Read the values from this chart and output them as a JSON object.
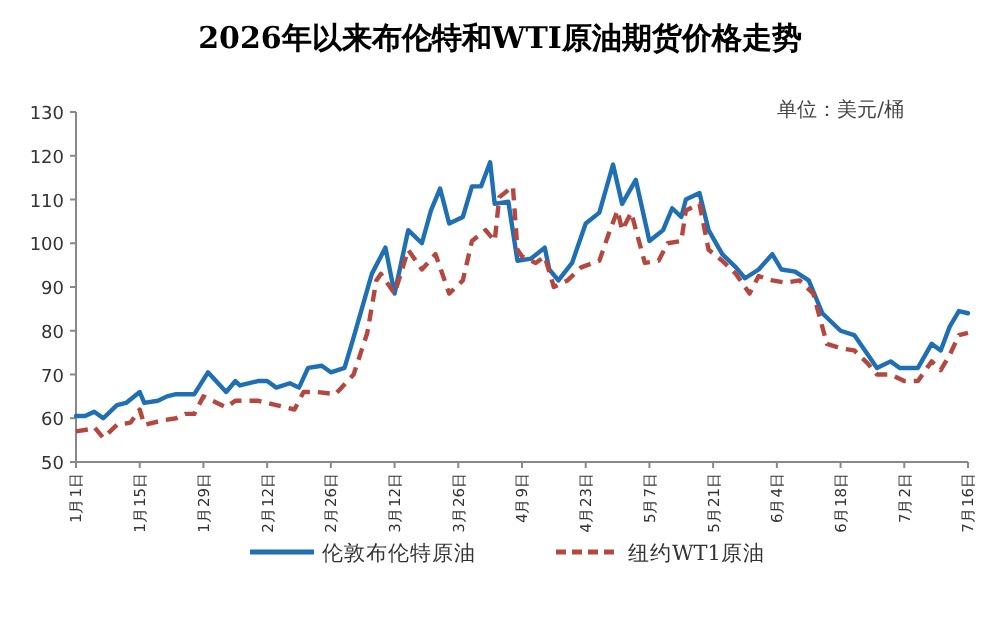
{
  "chart_data": {
    "type": "line",
    "title": "2026年以来布伦特和WTI原油期货价格走势",
    "annotations": [
      "单位：美元/桶"
    ],
    "xlim": [
      "--01-01",
      "--07-16"
    ],
    "xticks": [
      {
        "value": "--01-01",
        "label": "1月1日"
      },
      {
        "value": "--01-15",
        "label": "1月15日"
      },
      {
        "value": "--01-29",
        "label": "1月29日"
      },
      {
        "value": "--02-12",
        "label": "2月12日"
      },
      {
        "value": "--02-26",
        "label": "2月26日"
      },
      {
        "value": "--03-12",
        "label": "3月12日"
      },
      {
        "value": "--03-26",
        "label": "3月26日"
      },
      {
        "value": "--04-09",
        "label": "4月9日"
      },
      {
        "value": "--04-23",
        "label": "4月23日"
      },
      {
        "value": "--05-07",
        "label": "5月7日"
      },
      {
        "value": "--05-21",
        "label": "5月21日"
      },
      {
        "value": "--06-04",
        "label": "6月4日"
      },
      {
        "value": "--06-18",
        "label": "6月18日"
      },
      {
        "value": "--07-02",
        "label": "7月2日"
      },
      {
        "value": "--07-16",
        "label": "7月16日"
      }
    ],
    "ylim": [
      50,
      130
    ],
    "yticks": [
      50,
      60,
      70,
      80,
      90,
      100,
      110,
      120,
      130
    ],
    "grid": false,
    "legend": "bottom",
    "marker": "none",
    "series": [
      {
        "name": "伦敦布伦特原油",
        "color": "#1f6fb4",
        "line_style": "solid",
        "x": [
          "--01-01",
          "--01-03",
          "--01-05",
          "--01-07",
          "--01-10",
          "--01-12",
          "--01-15",
          "--01-16",
          "--01-19",
          "--01-21",
          "--01-23",
          "--01-27",
          "--01-30",
          "--02-03",
          "--02-05",
          "--02-06",
          "--02-10",
          "--02-12",
          "--02-14",
          "--02-17",
          "--02-19",
          "--02-21",
          "--02-24",
          "--02-26",
          "--03-01",
          "--03-03",
          "--03-07",
          "--03-10",
          "--03-12",
          "--03-15",
          "--03-18",
          "--03-20",
          "--03-22",
          "--03-24",
          "--03-27",
          "--03-29",
          "--03-31",
          "--04-02",
          "--04-03",
          "--04-06",
          "--04-08",
          "--04-11",
          "--04-14",
          "--04-15",
          "--04-17",
          "--04-20",
          "--04-23",
          "--04-26",
          "--04-29",
          "--05-01",
          "--05-04",
          "--05-07",
          "--05-10",
          "--05-12",
          "--05-14",
          "--05-15",
          "--05-18",
          "--05-20",
          "--05-23",
          "--05-26",
          "--05-28",
          "--05-31",
          "--06-03",
          "--06-05",
          "--06-08",
          "--06-11",
          "--06-14",
          "--06-18",
          "--06-21",
          "--06-24",
          "--06-26",
          "--06-29",
          "--07-01",
          "--07-05",
          "--07-08",
          "--07-10",
          "--07-12",
          "--07-14",
          "--07-16"
        ],
        "values": [
          60.5,
          60.5,
          61.5,
          60,
          63,
          63.5,
          66,
          63.5,
          64,
          65,
          65.5,
          65.5,
          70.5,
          66,
          68.5,
          67.5,
          68.5,
          68.5,
          67,
          68,
          67,
          71.5,
          72,
          70.5,
          71.5,
          78.5,
          93,
          99,
          88.5,
          103,
          100,
          107.5,
          112.5,
          104.5,
          106,
          113,
          113,
          118.5,
          109,
          109.5,
          96,
          96.5,
          99,
          94,
          91.5,
          95.5,
          104.5,
          107,
          118,
          109,
          114.5,
          100.5,
          103,
          108,
          106,
          110,
          111.5,
          103,
          97.5,
          94.5,
          92,
          94,
          97.5,
          94,
          93.5,
          91.5,
          84,
          80,
          79,
          74.5,
          71.5,
          73,
          71.5,
          71.5,
          77,
          75.5,
          81,
          84.5,
          84
        ]
      },
      {
        "name": "纽约WT1原油",
        "color": "#b5473f",
        "line_style": "dashed",
        "x": [
          "--01-01",
          "--01-04",
          "--01-05",
          "--01-07",
          "--01-10",
          "--01-13",
          "--01-15",
          "--01-16",
          "--01-20",
          "--01-23",
          "--01-25",
          "--01-27",
          "--01-29",
          "--02-03",
          "--02-05",
          "--02-10",
          "--02-14",
          "--02-18",
          "--02-20",
          "--02-23",
          "--02-27",
          "--03-03",
          "--03-06",
          "--03-08",
          "--03-09",
          "--03-12",
          "--03-15",
          "--03-18",
          "--03-21",
          "--03-24",
          "--03-27",
          "--03-29",
          "--04-01",
          "--04-03",
          "--04-04",
          "--04-07",
          "--04-08",
          "--04-09",
          "--04-12",
          "--04-14",
          "--04-16",
          "--04-19",
          "--04-22",
          "--04-26",
          "--04-28",
          "--04-30",
          "--05-01",
          "--05-03",
          "--05-06",
          "--05-09",
          "--05-11",
          "--05-14",
          "--05-15",
          "--05-18",
          "--05-20",
          "--05-23",
          "--05-26",
          "--05-29",
          "--05-31",
          "--06-03",
          "--06-06",
          "--06-09",
          "--06-12",
          "--06-15",
          "--06-18",
          "--06-21",
          "--06-24",
          "--06-26",
          "--06-29",
          "--07-02",
          "--07-05",
          "--07-08",
          "--07-10",
          "--07-12",
          "--07-14",
          "--07-16"
        ],
        "values": [
          57,
          57.5,
          58,
          55.5,
          58.5,
          59,
          62,
          58.5,
          59.5,
          60,
          61,
          61,
          65,
          62.5,
          64,
          64,
          63,
          62,
          66,
          66,
          65.5,
          70,
          79.5,
          91.5,
          93,
          88.5,
          98.5,
          94,
          97.5,
          88.5,
          91.5,
          100.5,
          103,
          100.5,
          110.5,
          113,
          98.5,
          97,
          95.5,
          97,
          90,
          91.5,
          94.5,
          96,
          102,
          107.5,
          103,
          107,
          95.5,
          96,
          100,
          100.5,
          107.5,
          109,
          98.5,
          96,
          93,
          88.5,
          92.5,
          91.5,
          91,
          91.5,
          88.5,
          77,
          76,
          75.5,
          72.5,
          70,
          70,
          68.5,
          68.5,
          73,
          71,
          74.5,
          79,
          79.5
        ]
      }
    ]
  }
}
